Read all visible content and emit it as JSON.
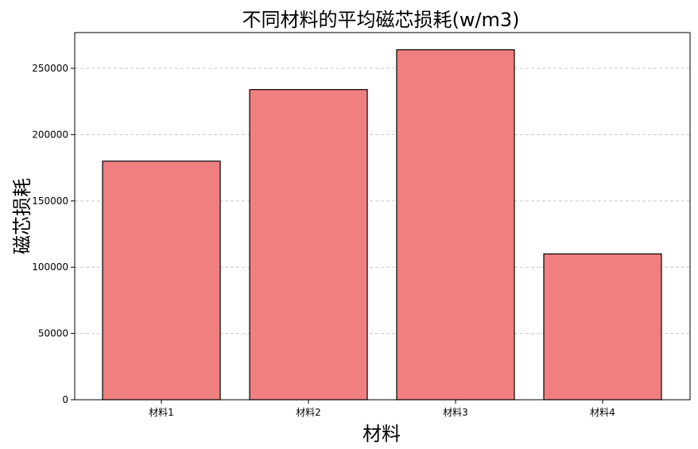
{
  "chart_data": {
    "type": "bar",
    "title": "不同材料的平均磁芯损耗(w/m3)",
    "xlabel": "材料",
    "ylabel": "磁芯损耗",
    "categories": [
      "材料1",
      "材料2",
      "材料3",
      "材料4"
    ],
    "values": [
      180000,
      234000,
      264000,
      110000
    ],
    "ylim": [
      0,
      277000
    ],
    "yticks": [
      0,
      50000,
      100000,
      150000,
      200000,
      250000
    ],
    "ytick_labels": [
      "0",
      "50000",
      "100000",
      "150000",
      "200000",
      "250000"
    ],
    "grid": "y-dashed",
    "bar_color": "#f08080",
    "edge_color": "#000000",
    "grid_color": "#c8c8c8"
  }
}
